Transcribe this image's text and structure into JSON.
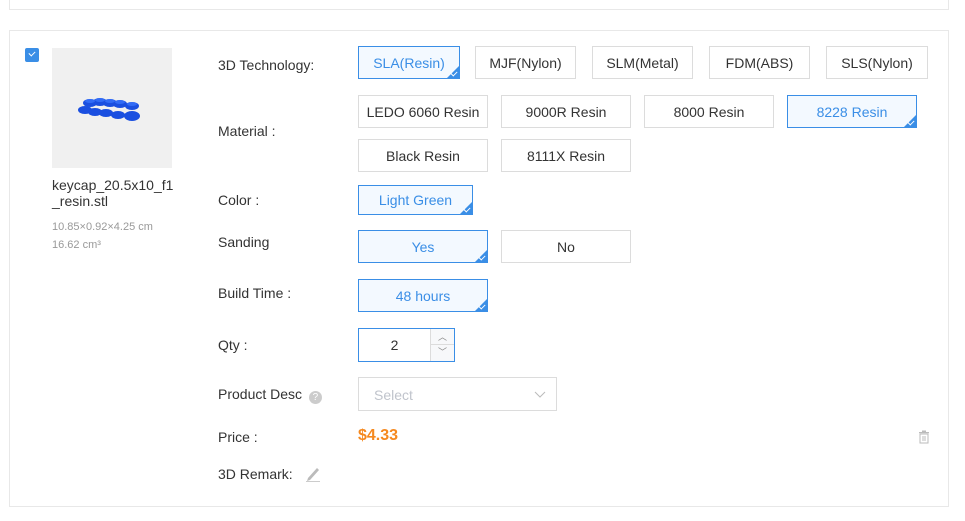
{
  "item": {
    "checked": true,
    "filename": "keycap_20.5x10_f1_resin.stl",
    "dimensions": "10.85×0.92×4.25 cm",
    "volume": "16.62 cm³"
  },
  "labels": {
    "technology": "3D Technology:",
    "material": "Material :",
    "color": "Color :",
    "sanding": "Sanding",
    "build_time": "Build Time :",
    "qty": "Qty :",
    "product_desc": "Product Desc",
    "price": "Price :",
    "remark": "3D Remark:"
  },
  "technology": [
    "SLA(Resin)",
    "MJF(Nylon)",
    "SLM(Metal)",
    "FDM(ABS)",
    "SLS(Nylon)"
  ],
  "technology_selected": "SLA(Resin)",
  "materials": [
    "LEDO 6060 Resin",
    "9000R Resin",
    "8000 Resin",
    "8228 Resin",
    "Black Resin",
    "8111X Resin"
  ],
  "material_selected": "8228 Resin",
  "colors": [
    "Light Green"
  ],
  "sanding": [
    "Yes",
    "No"
  ],
  "sanding_selected": "Yes",
  "build_time": [
    "48 hours"
  ],
  "qty": "2",
  "product_desc_placeholder": "Select",
  "price": "$4.33",
  "colors_theme": {
    "accent": "#3a8ee6",
    "price": "#f5891f"
  }
}
